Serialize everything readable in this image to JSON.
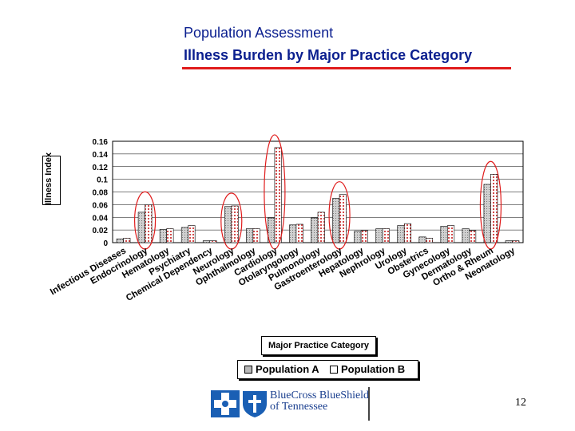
{
  "slide": {
    "title_line1": "Population Assessment",
    "title_line2": "Illness Burden by Major Practice Category",
    "page_number": "12",
    "rule_color": "#e01b1b",
    "title_color": "#0b1f8f"
  },
  "logo": {
    "text_line1": "BlueCross BlueShield",
    "text_line2": "of Tennessee",
    "icon_1": "blue-cross-icon",
    "icon_2": "blue-shield-icon"
  },
  "chart_data": {
    "type": "bar",
    "ylabel": "Illness Index",
    "xlabel": "Major Practice Category",
    "ylim": [
      0,
      0.16
    ],
    "yticks": [
      "0",
      "0.02",
      "0.04",
      "0.06",
      "0.08",
      "0.1",
      "0.12",
      "0.14",
      "0.16"
    ],
    "grid": true,
    "legend_placement": "bottom",
    "categories": [
      "Infectious Diseases",
      "Endocrinology",
      "Hematology",
      "Psychiatry",
      "Chemical Dependency",
      "Neurology",
      "Ophthalmology",
      "Cardiology",
      "Otolaryngology",
      "Pulmonology",
      "Gastroenterology",
      "Hepatology",
      "Nephrology",
      "Urology",
      "Obstetrics",
      "Gynecology",
      "Dermatology",
      "Ortho & Rheum",
      "Neonatology"
    ],
    "series": [
      {
        "name": "Population A",
        "color": "#b8b8b8",
        "values": [
          0.006,
          0.048,
          0.021,
          0.024,
          0.003,
          0.057,
          0.022,
          0.039,
          0.028,
          0.039,
          0.07,
          0.018,
          0.022,
          0.027,
          0.009,
          0.026,
          0.022,
          0.092,
          0.003
        ]
      },
      {
        "name": "Population B",
        "color": "#ffffff",
        "values": [
          0.007,
          0.06,
          0.022,
          0.027,
          0.003,
          0.058,
          0.022,
          0.15,
          0.029,
          0.048,
          0.076,
          0.019,
          0.022,
          0.03,
          0.007,
          0.027,
          0.019,
          0.108,
          0.003
        ]
      }
    ],
    "highlighted_categories": [
      "Endocrinology",
      "Neurology",
      "Cardiology",
      "Gastroenterology",
      "Ortho & Rheum"
    ],
    "highlight_color": "#e01b1b"
  }
}
